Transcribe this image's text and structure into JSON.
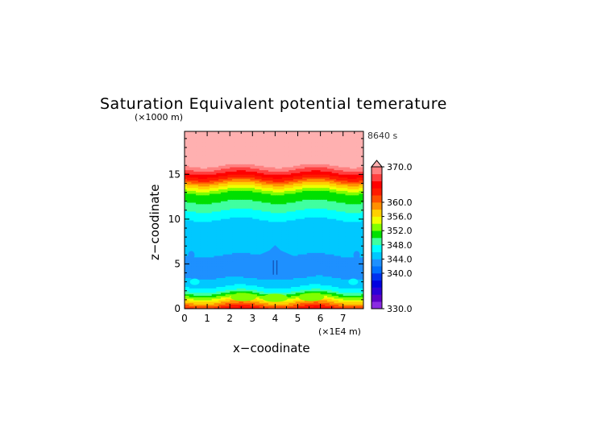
{
  "chart_data": {
    "type": "heatmap",
    "title": "Saturation Equivalent potential temerature",
    "time_label": "8640 s",
    "xlabel": "x−coodinate",
    "ylabel": "z−coodinate",
    "x_unit": "(×1E4 m)",
    "y_unit": "(×1000 m)",
    "xlim": [
      0,
      7.9
    ],
    "ylim": [
      0,
      19.8
    ],
    "x_ticks": [
      "0",
      "1",
      "2",
      "3",
      "4",
      "5",
      "6",
      "7"
    ],
    "y_ticks": [
      "0",
      "5",
      "10",
      "15"
    ],
    "colorbar": {
      "min": 330,
      "max": 370,
      "levels": [
        330,
        332,
        334,
        336,
        338,
        340,
        342,
        344,
        346,
        348,
        350,
        352,
        354,
        356,
        358,
        360,
        362,
        364,
        366,
        368,
        370
      ],
      "labels": [
        "370.0",
        "360.0",
        "356.0",
        "352.0",
        "348.0",
        "344.0",
        "340.0",
        "330.0"
      ],
      "extend": "max",
      "colors": [
        "#8a2be2",
        "#5a00c8",
        "#2a00d8",
        "#0000e0",
        "#0030f0",
        "#0070ff",
        "#1e90ff",
        "#00c8ff",
        "#00ffff",
        "#40ffa0",
        "#00e000",
        "#80ff00",
        "#f0ff00",
        "#ffd000",
        "#ff9000",
        "#ff5000",
        "#ff1a00",
        "#ff0000",
        "#ff4040",
        "#ff8080",
        "#ffb0b0"
      ]
    },
    "profile_z_km": [
      0,
      0.5,
      1,
      1.5,
      2,
      2.5,
      3,
      3.5,
      4,
      6,
      8,
      10,
      11,
      12,
      13,
      13.5,
      14,
      14.5,
      15,
      16,
      19.8
    ],
    "profile_theta_K": [
      364,
      360,
      356,
      352,
      348,
      346,
      345,
      344,
      343.5,
      344,
      345,
      346,
      348,
      350,
      352,
      355,
      358,
      362,
      365,
      370,
      371
    ],
    "features": [
      {
        "type": "blob",
        "x_center": 4.0,
        "z_center": 4.6,
        "x_halfwidth": 2.4,
        "z_halfwidth": 1.3,
        "value": 342.5
      }
    ]
  }
}
